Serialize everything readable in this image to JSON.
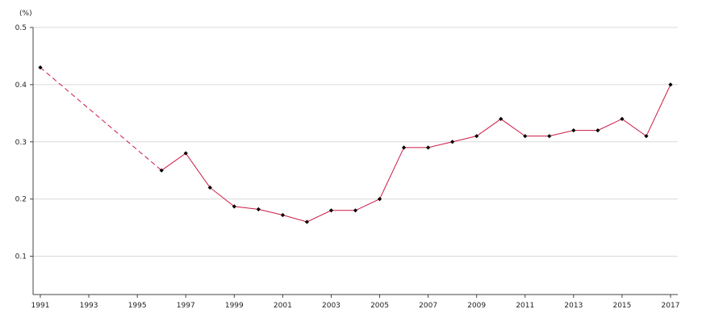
{
  "chart_data": {
    "type": "line",
    "ylabel": "(%)",
    "ylim": [
      0.033,
      0.5
    ],
    "xlim": [
      1991,
      2017
    ],
    "y_ticks": [
      0.1,
      0.2,
      0.3,
      0.4,
      0.5
    ],
    "x_ticks": [
      1991,
      1993,
      1995,
      1997,
      1999,
      2001,
      2003,
      2005,
      2007,
      2009,
      2011,
      2013,
      2015,
      2017
    ],
    "grid": "horizontal",
    "legend": "none",
    "line_color": "#cc1a44",
    "marker_color": "#000000",
    "grid_color": "#d9d9d9",
    "series": [
      {
        "x": [
          1991,
          1996,
          1997,
          1998,
          1999,
          2000,
          2001,
          2002,
          2003,
          2004,
          2005,
          2006,
          2007,
          2008,
          2009,
          2010,
          2011,
          2012,
          2013,
          2014,
          2015,
          2016,
          2017
        ],
        "values": [
          0.43,
          0.25,
          0.28,
          0.22,
          0.187,
          0.182,
          0.172,
          0.16,
          0.18,
          0.18,
          0.2,
          0.29,
          0.29,
          0.3,
          0.31,
          0.34,
          0.31,
          0.31,
          0.32,
          0.32,
          0.34,
          0.31,
          0.4
        ],
        "gap_dashed_between": [
          1991,
          1996
        ]
      }
    ]
  }
}
